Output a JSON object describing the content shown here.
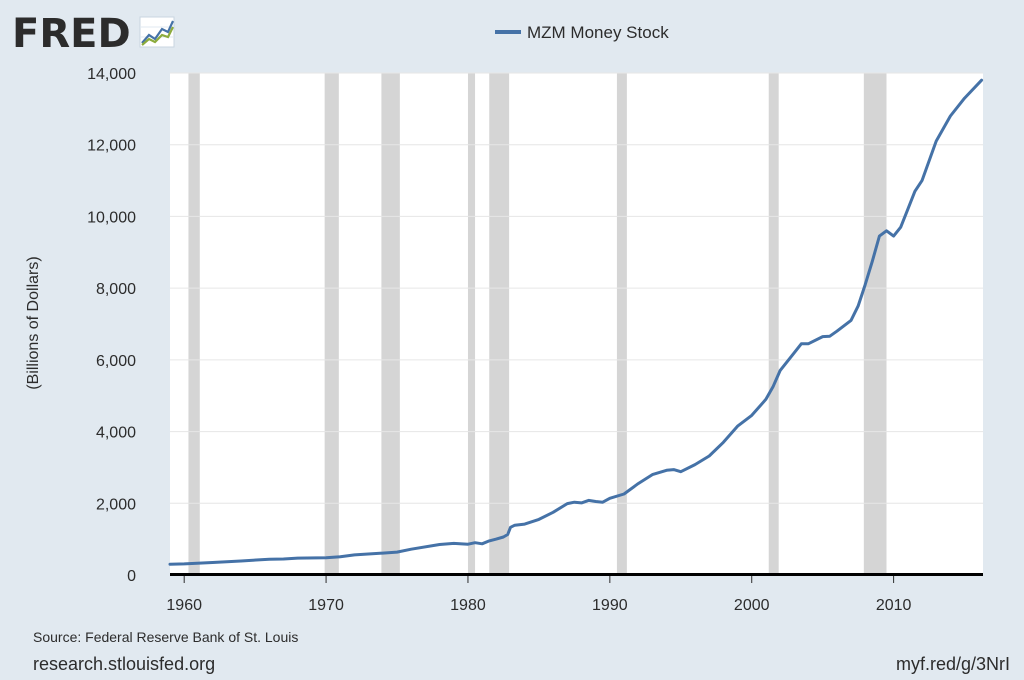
{
  "logo": {
    "text": "FRED",
    "icon": "trend-chart-icon"
  },
  "chart_data": {
    "type": "line",
    "title": "",
    "xlabel": "",
    "ylabel": "(Billions of Dollars)",
    "xlim": [
      1959.0,
      2016.3
    ],
    "ylim": [
      0,
      14000
    ],
    "yticks": [
      0,
      2000,
      4000,
      6000,
      8000,
      10000,
      12000,
      14000
    ],
    "ytick_labels": [
      "0",
      "2,000",
      "4,000",
      "6,000",
      "8,000",
      "10,000",
      "12,000",
      "14,000"
    ],
    "xticks": [
      1960,
      1970,
      1980,
      1990,
      2000,
      2010
    ],
    "xtick_labels": [
      "1960",
      "1970",
      "1980",
      "1990",
      "2000",
      "2010"
    ],
    "grid": true,
    "legend": "top-center",
    "line_color": "#4572a7",
    "recession_color": "#d5d5d5",
    "recessions": [
      [
        1960.3,
        1961.1
      ],
      [
        1969.9,
        1970.9
      ],
      [
        1973.9,
        1975.2
      ],
      [
        1980.0,
        1980.5
      ],
      [
        1981.5,
        1982.9
      ],
      [
        1990.5,
        1991.2
      ],
      [
        2001.2,
        2001.9
      ],
      [
        2007.9,
        2009.5
      ]
    ],
    "series": [
      {
        "name": "MZM Money Stock",
        "x": [
          1959.0,
          1960,
          1962,
          1964,
          1966,
          1967,
          1968,
          1970,
          1971,
          1972,
          1974,
          1975,
          1976,
          1978,
          1979,
          1980,
          1980.5,
          1981,
          1981.5,
          1982,
          1982.5,
          1982.8,
          1983,
          1983.3,
          1984,
          1985,
          1986,
          1987,
          1987.5,
          1988,
          1988.5,
          1989,
          1989.5,
          1990,
          1991,
          1992,
          1993,
          1994,
          1994.5,
          1995,
          1996,
          1997,
          1998,
          1999,
          2000,
          2001,
          2001.5,
          2002,
          2003,
          2003.5,
          2004,
          2005,
          2005.5,
          2006,
          2007,
          2007.5,
          2008,
          2008.5,
          2009,
          2009.5,
          2010,
          2010.5,
          2011,
          2011.5,
          2012,
          2013,
          2014,
          2015,
          2016.2
        ],
        "y": [
          300,
          310,
          350,
          390,
          440,
          445,
          470,
          480,
          510,
          560,
          610,
          640,
          720,
          850,
          880,
          860,
          900,
          870,
          950,
          1000,
          1060,
          1130,
          1330,
          1390,
          1420,
          1550,
          1750,
          1990,
          2030,
          2010,
          2080,
          2050,
          2030,
          2140,
          2260,
          2550,
          2800,
          2920,
          2940,
          2880,
          3080,
          3320,
          3700,
          4150,
          4450,
          4900,
          5250,
          5700,
          6200,
          6450,
          6450,
          6650,
          6660,
          6800,
          7100,
          7500,
          8100,
          8750,
          9450,
          9600,
          9450,
          9700,
          10200,
          10700,
          11000,
          12100,
          12800,
          13300,
          13800
        ]
      }
    ]
  },
  "source_text": "Source: Federal Reserve Bank of St. Louis",
  "site_text": "research.stlouisfed.org",
  "short_url": "myf.red/g/3NrI"
}
